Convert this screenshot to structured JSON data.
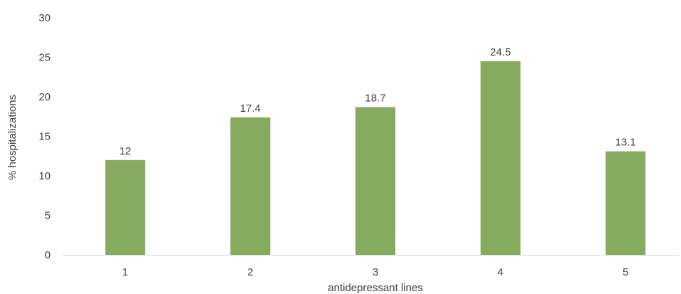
{
  "chart_data": {
    "type": "bar",
    "title": "",
    "xlabel": "antidepressant lines",
    "ylabel": "% hospitalizations",
    "categories": [
      "1",
      "2",
      "3",
      "4",
      "5"
    ],
    "values": [
      12,
      17.4,
      18.7,
      24.5,
      13.1
    ],
    "data_labels": [
      "12",
      "17.4",
      "18.7",
      "24.5",
      "13.1"
    ],
    "ylim": [
      0,
      30
    ],
    "yticks": [
      "0",
      "5",
      "10",
      "15",
      "20",
      "25",
      "30"
    ],
    "grid": false,
    "legend": "none",
    "bar_color": "#86ab5e"
  }
}
